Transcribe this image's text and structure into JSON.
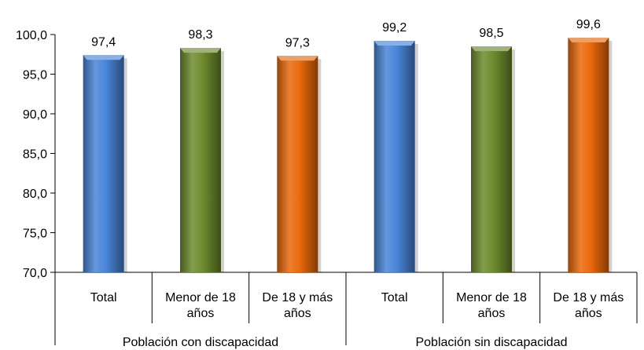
{
  "chart_data": {
    "type": "bar",
    "ylim": [
      70,
      100
    ],
    "y_ticks": [
      "100,0",
      "95,0",
      "90,0",
      "85,0",
      "80,0",
      "75,0",
      "70,0"
    ],
    "grid": false,
    "groups": [
      {
        "label": "Población con discapacidad",
        "bars": [
          {
            "category": [
              "Total"
            ],
            "value": 97.4,
            "label": "97,4",
            "color": "#4a86d8"
          },
          {
            "category": [
              "Menor de 18",
              "años"
            ],
            "value": 98.3,
            "label": "98,3",
            "color": "#6e8c2e"
          },
          {
            "category": [
              "De 18 y más",
              "años"
            ],
            "value": 97.3,
            "label": "97,3",
            "color": "#ea6a0c"
          }
        ]
      },
      {
        "label": "Población sin discapacidad",
        "bars": [
          {
            "category": [
              "Total"
            ],
            "value": 99.2,
            "label": "99,2",
            "color": "#4a86d8"
          },
          {
            "category": [
              "Menor de 18",
              "años"
            ],
            "value": 98.5,
            "label": "98,5",
            "color": "#6e8c2e"
          },
          {
            "category": [
              "De 18 y más",
              "años"
            ],
            "value": 99.6,
            "label": "99,6",
            "color": "#ea6a0c"
          }
        ]
      }
    ]
  }
}
